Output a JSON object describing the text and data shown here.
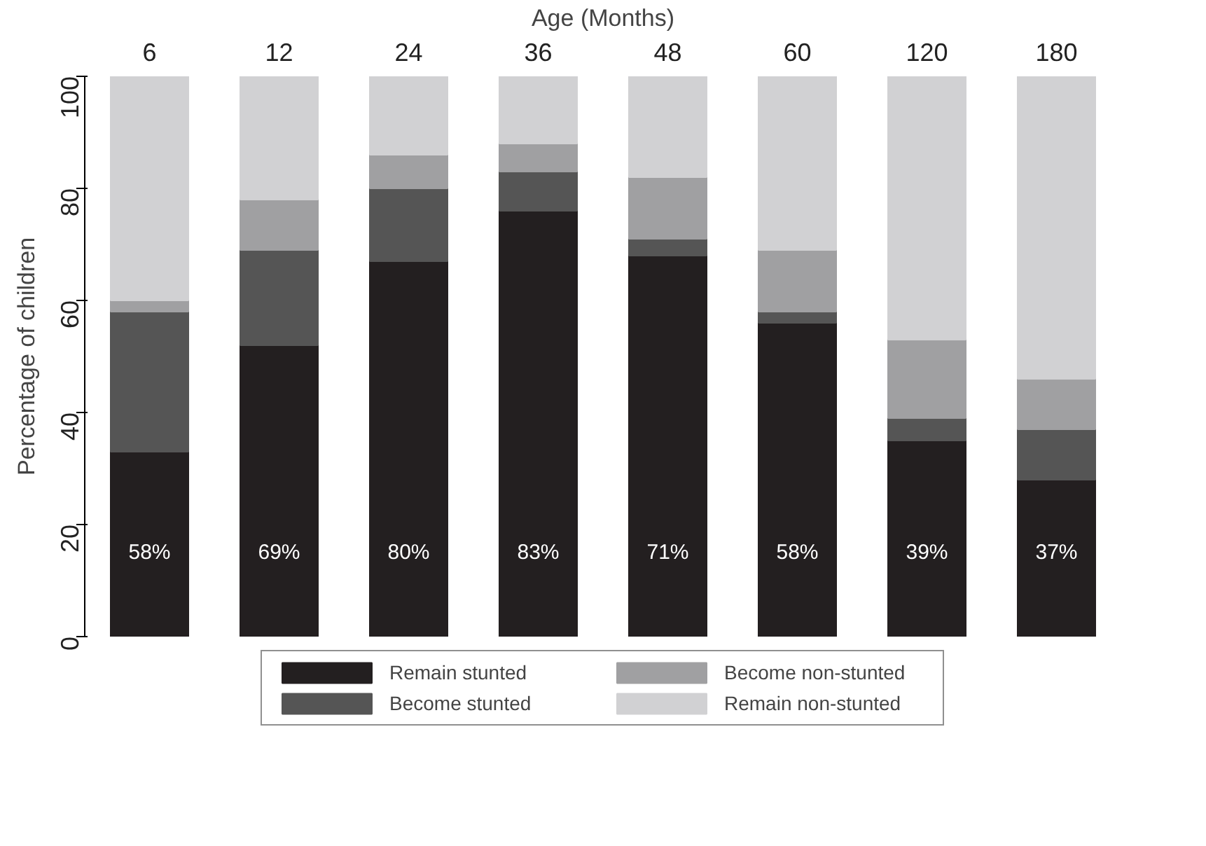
{
  "chart_data": {
    "type": "bar",
    "stacked": true,
    "xlabel": "Age (Months)",
    "ylabel": "Percentage of children",
    "categories": [
      "6",
      "12",
      "24",
      "36",
      "48",
      "60",
      "120",
      "180"
    ],
    "ylim": [
      0,
      100
    ],
    "yticks": [
      0,
      20,
      40,
      60,
      80,
      100
    ],
    "grid": false,
    "legend": "bottom",
    "series": [
      {
        "name": "Remain stunted",
        "color": "#231f20",
        "values": [
          33,
          52,
          67,
          76,
          68,
          56,
          35,
          28
        ]
      },
      {
        "name": "Become stunted",
        "color": "#555555",
        "values": [
          25,
          17,
          13,
          7,
          3,
          2,
          4,
          9
        ]
      },
      {
        "name": "Become non-stunted",
        "color": "#a0a0a2",
        "values": [
          2,
          9,
          6,
          5,
          11,
          11,
          14,
          9
        ]
      },
      {
        "name": "Remain non-stunted",
        "color": "#d1d1d3",
        "values": [
          40,
          22,
          14,
          12,
          18,
          31,
          47,
          54
        ]
      }
    ],
    "annotations": [
      "58%",
      "69%",
      "80%",
      "83%",
      "71%",
      "58%",
      "39%",
      "37%"
    ]
  }
}
